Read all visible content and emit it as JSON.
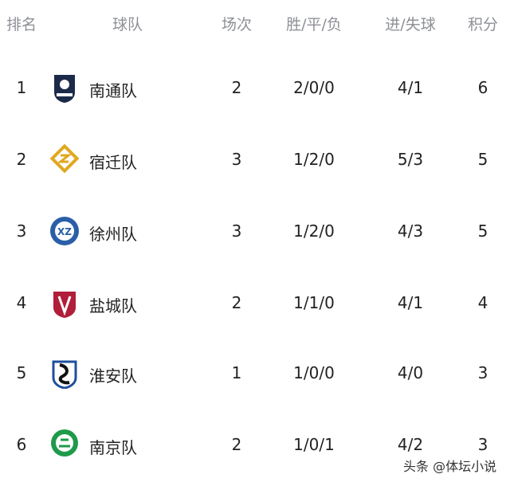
{
  "headers": {
    "rank": "排名",
    "team": "球队",
    "played": "场次",
    "wdl": "胜/平/负",
    "goals": "进/失球",
    "points": "积分"
  },
  "rows": [
    {
      "rank": "1",
      "team": "南通队",
      "logo": "nantong-logo",
      "logo_color": "#1c2a4a",
      "played": "2",
      "wdl": "2/0/0",
      "goals": "4/1",
      "points": "6"
    },
    {
      "rank": "2",
      "team": "宿迁队",
      "logo": "suqian-logo",
      "logo_color": "#e0a820",
      "played": "3",
      "wdl": "1/2/0",
      "goals": "5/3",
      "points": "5"
    },
    {
      "rank": "3",
      "team": "徐州队",
      "logo": "xuzhou-logo",
      "logo_color": "#2a5fa8",
      "played": "3",
      "wdl": "1/2/0",
      "goals": "4/3",
      "points": "5"
    },
    {
      "rank": "4",
      "team": "盐城队",
      "logo": "yancheng-logo",
      "logo_color": "#b01e3a",
      "played": "2",
      "wdl": "1/1/0",
      "goals": "4/1",
      "points": "4"
    },
    {
      "rank": "5",
      "team": "淮安队",
      "logo": "huaian-logo",
      "logo_color": "#1d4f9c",
      "played": "1",
      "wdl": "1/0/0",
      "goals": "4/0",
      "points": "3"
    },
    {
      "rank": "6",
      "team": "南京队",
      "logo": "nanjing-logo",
      "logo_color": "#1e9a4a",
      "played": "2",
      "wdl": "1/0/1",
      "goals": "4/2",
      "points": "3"
    }
  ],
  "watermark": "头条 @体坛小说"
}
